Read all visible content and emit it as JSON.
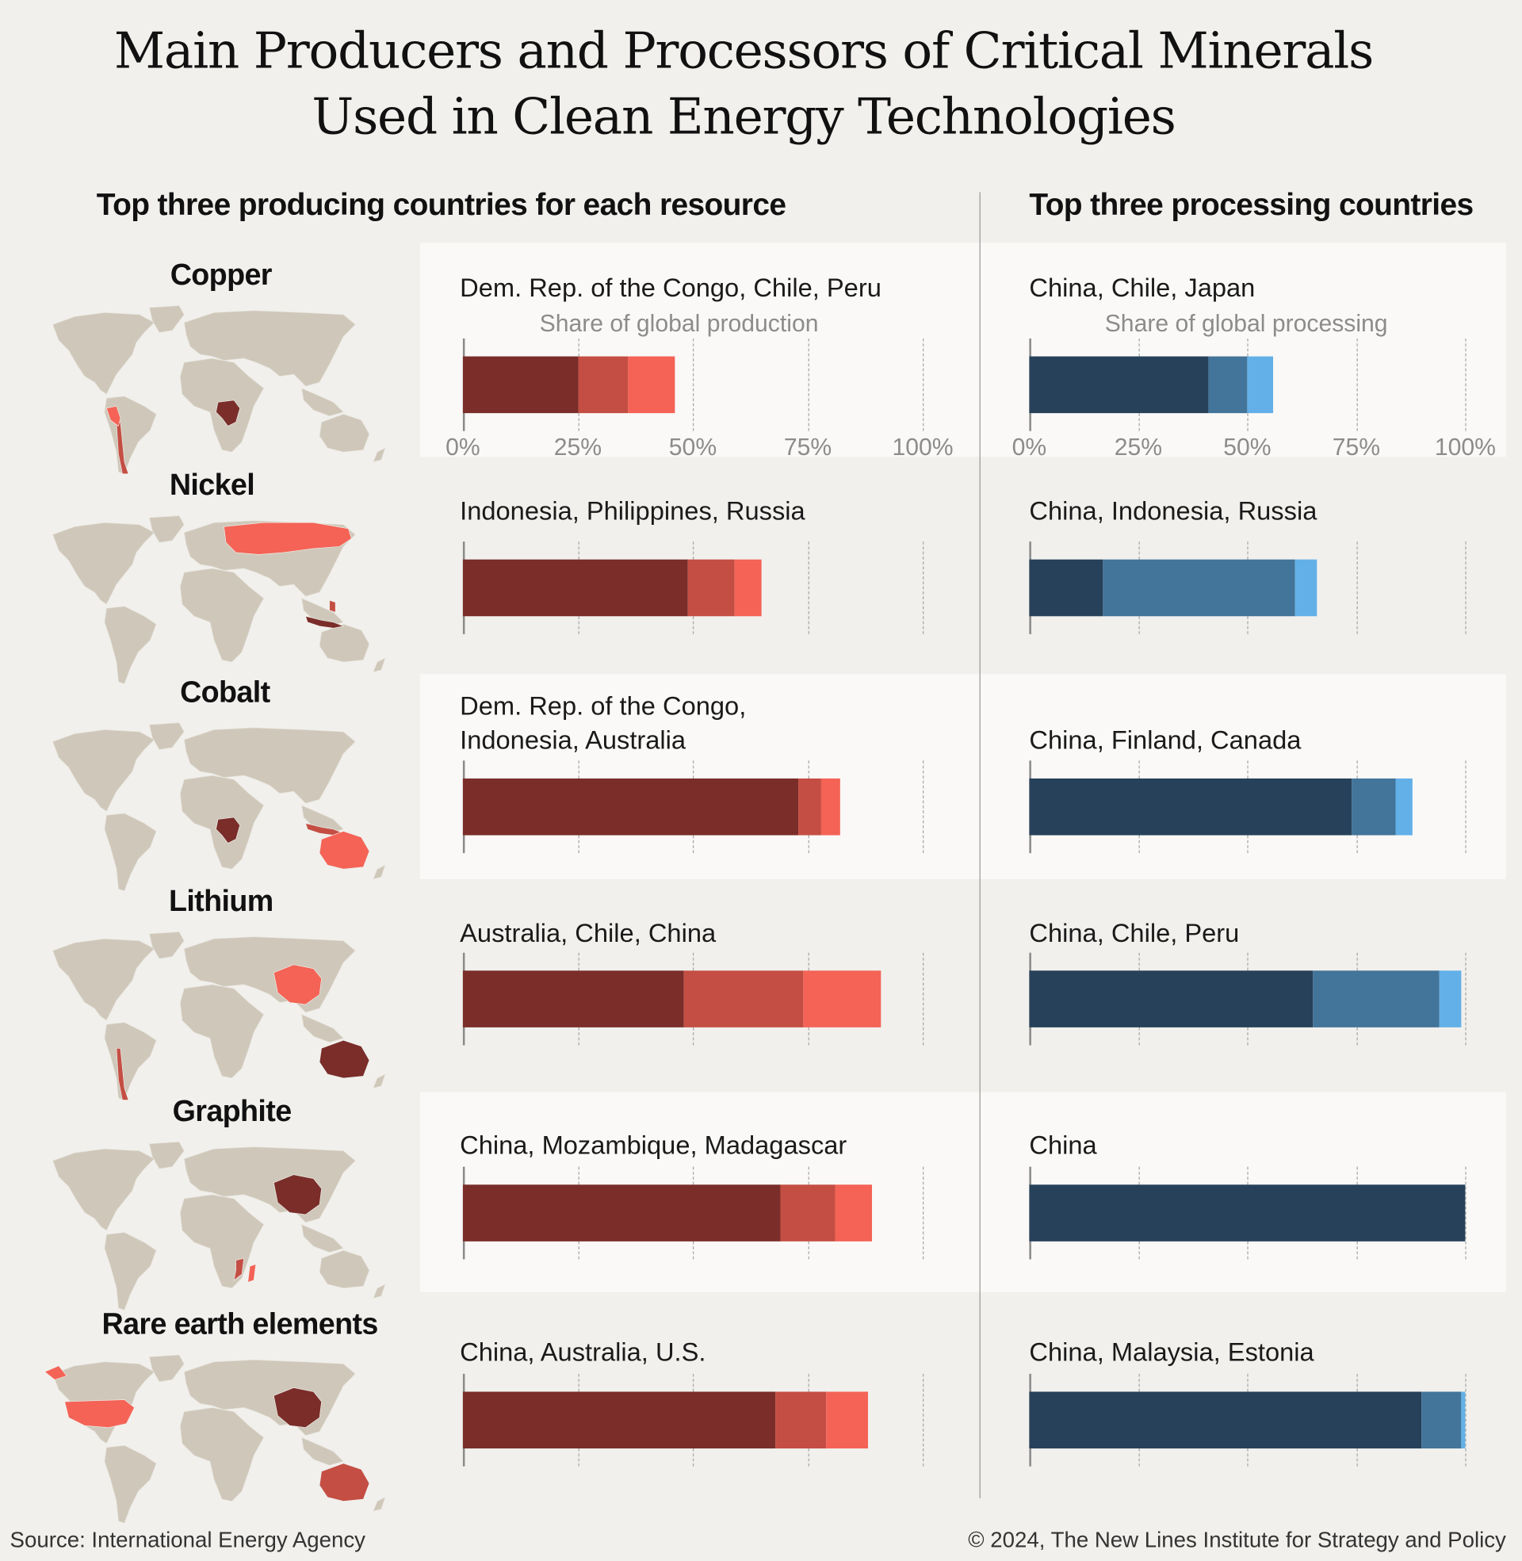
{
  "title_line1": "Main Producers and Processors of Critical Minerals",
  "title_line2": "Used in Clean Energy Technologies",
  "left_heading": "Top three producing countries for each resource",
  "right_heading": "Top three processing countries",
  "production_caption": "Share of global production",
  "processing_caption": "Share of global processing",
  "source": "Source: International Energy Agency",
  "copyright": "© 2024, The New Lines Institute for Strategy and Policy",
  "colors": {
    "background": "#f1f0ed",
    "panel": "#faf9f7",
    "land": "#cfc8ba",
    "production": [
      "#7a2d29",
      "#c44e43",
      "#f46356"
    ],
    "processing": [
      "#264159",
      "#437499",
      "#63b0e8"
    ]
  },
  "chart_data": {
    "type": "bar",
    "orientation": "horizontal-stacked",
    "xlim": [
      0,
      100
    ],
    "tick_labels": [
      "0%",
      "25%",
      "50%",
      "75%",
      "100%"
    ],
    "grid": true,
    "rows": [
      {
        "mineral": "Copper",
        "production_label": "Dem. Rep. of the Congo, Chile, Peru",
        "production": [
          25,
          11,
          10
        ],
        "processing_label": "China, Chile, Japan",
        "processing": [
          41,
          9,
          6
        ],
        "map_highlight": [
          [
            "DRC",
            1
          ],
          [
            "Chile",
            2
          ],
          [
            "Peru",
            3
          ]
        ]
      },
      {
        "mineral": "Nickel",
        "production_label": "Indonesia, Philippines, Russia",
        "production": [
          49,
          10,
          6
        ],
        "processing_label": "China, Indonesia, Russia",
        "processing": [
          17,
          44,
          5
        ],
        "map_highlight": [
          [
            "Indonesia",
            1
          ],
          [
            "Philippines",
            2
          ],
          [
            "Russia",
            3
          ]
        ]
      },
      {
        "mineral": "Cobalt",
        "production_label": "Dem. Rep. of the Congo,\nIndonesia, Australia",
        "production": [
          73,
          5,
          4
        ],
        "processing_label": "China, Finland, Canada",
        "processing": [
          74,
          10,
          4
        ],
        "map_highlight": [
          [
            "DRC",
            1
          ],
          [
            "Indonesia",
            2
          ],
          [
            "Australia",
            3
          ]
        ]
      },
      {
        "mineral": "Lithium",
        "production_label": "Australia, Chile, China",
        "production": [
          48,
          26,
          17
        ],
        "processing_label": "China, Chile, Peru",
        "processing": [
          65,
          29,
          5
        ],
        "map_highlight": [
          [
            "Australia",
            1
          ],
          [
            "Chile",
            2
          ],
          [
            "China",
            3
          ]
        ]
      },
      {
        "mineral": "Graphite",
        "production_label": "China, Mozambique, Madagascar",
        "production": [
          69,
          12,
          8
        ],
        "processing_label": "China",
        "processing": [
          100
        ],
        "map_highlight": [
          [
            "China",
            1
          ],
          [
            "Mozambique",
            2
          ],
          [
            "Madagascar",
            3
          ]
        ]
      },
      {
        "mineral": "Rare earth elements",
        "production_label": "China, Australia, U.S.",
        "production": [
          68,
          11,
          9
        ],
        "processing_label": "China, Malaysia, Estonia",
        "processing": [
          90,
          9,
          1
        ],
        "map_highlight": [
          [
            "China",
            1
          ],
          [
            "Australia",
            2
          ],
          [
            "USA",
            3
          ]
        ]
      }
    ]
  }
}
